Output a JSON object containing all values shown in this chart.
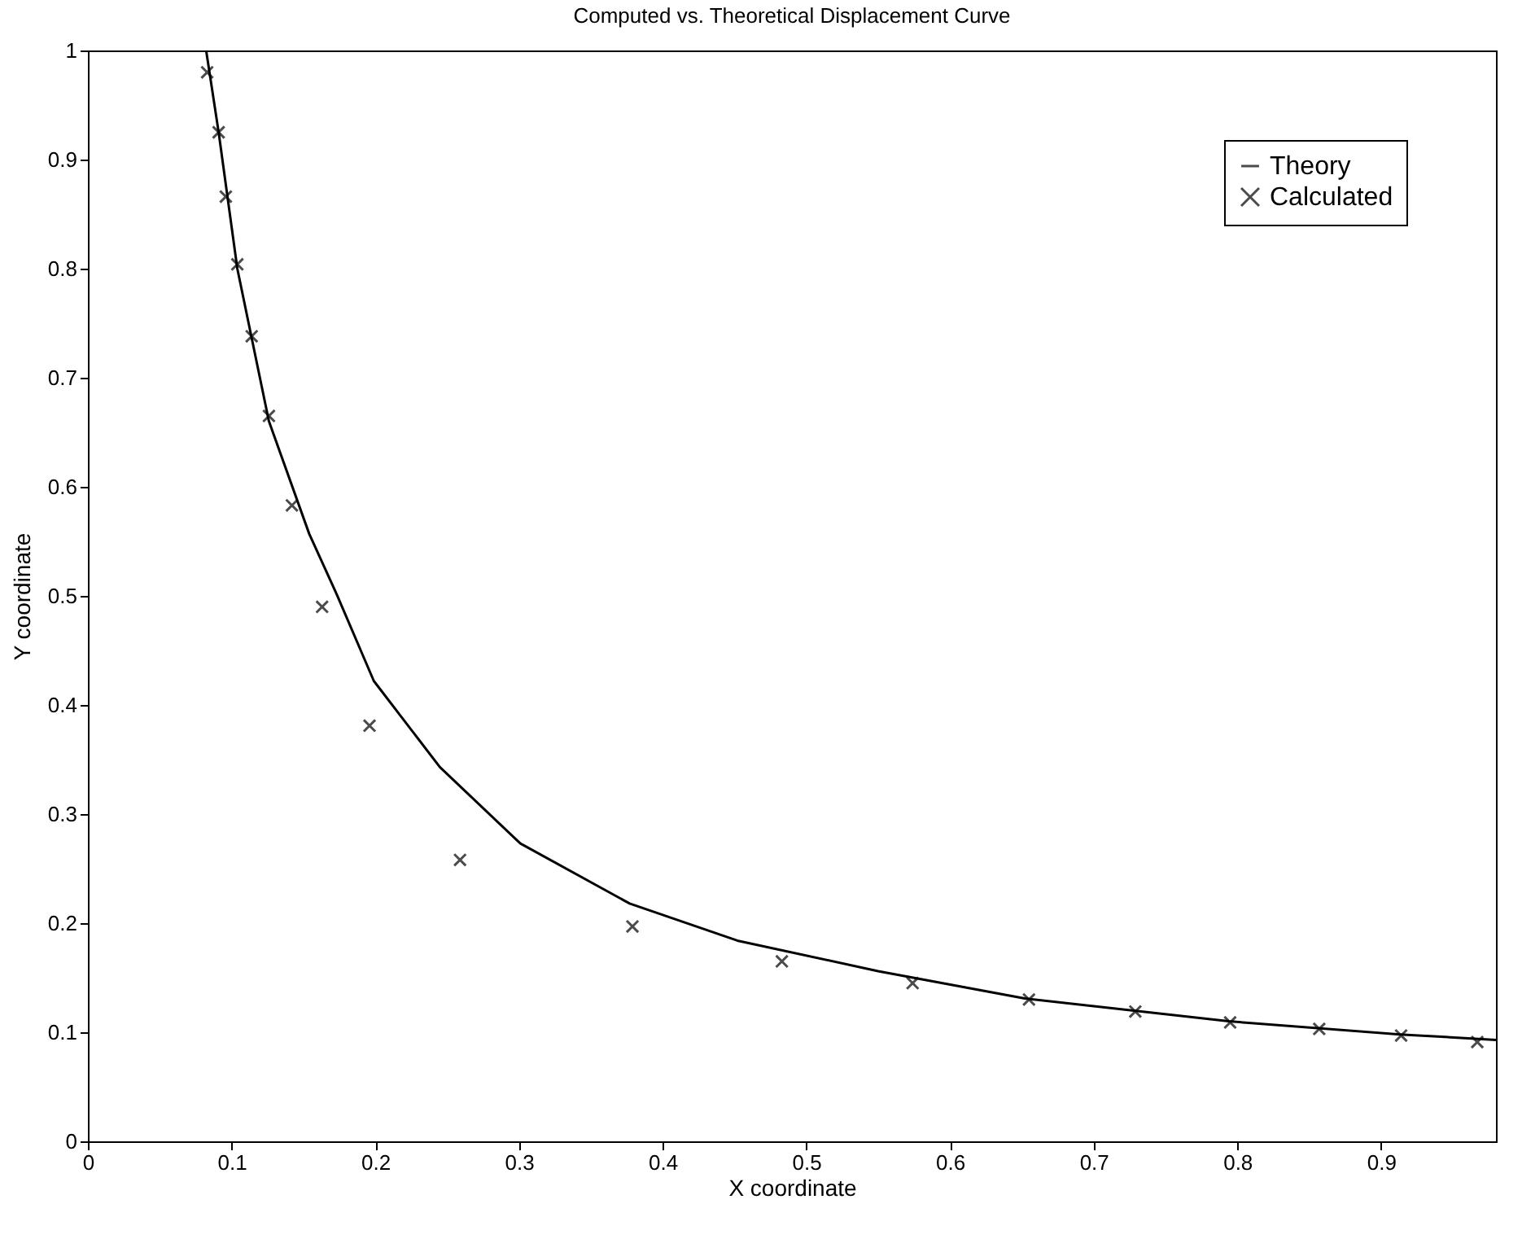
{
  "chart_data": {
    "type": "line",
    "title": "Computed vs. Theoretical Displacement Curve",
    "xlabel": "X coordinate",
    "ylabel": "Y coordinate",
    "xlim": [
      0,
      0.98
    ],
    "ylim": [
      0,
      1
    ],
    "xticks": [
      0,
      0.1,
      0.2,
      0.3,
      0.4,
      0.5,
      0.6,
      0.7,
      0.8,
      0.9
    ],
    "yticks": [
      0,
      0.1,
      0.2,
      0.3,
      0.4,
      0.5,
      0.6,
      0.7,
      0.8,
      0.9,
      1
    ],
    "grid": false,
    "legend": "top right",
    "series": [
      {
        "name": "Theory",
        "color": "#000000",
        "line_style": "solid",
        "x": [
          0.0823,
          0.091,
          0.104,
          0.126,
          0.154,
          0.173,
          0.199,
          0.245,
          0.301,
          0.377,
          0.452,
          0.55,
          0.652,
          0.794,
          0.913,
          0.98
        ],
        "values": [
          1,
          0.925,
          0.8,
          0.66,
          0.557,
          0.502,
          0.422,
          0.343,
          0.273,
          0.218,
          0.184,
          0.156,
          0.131,
          0.11,
          0.098,
          0.093
        ]
      },
      {
        "name": "Calculated",
        "type": "scatter",
        "color": "#000000",
        "marker": "cross",
        "x": [
          0.083,
          0.091,
          0.096,
          0.104,
          0.114,
          0.126,
          0.142,
          0.163,
          0.196,
          0.259,
          0.379,
          0.483,
          0.574,
          0.655,
          0.729,
          0.795,
          0.857,
          0.914,
          0.967
        ],
        "values": [
          0.98,
          0.925,
          0.866,
          0.804,
          0.738,
          0.665,
          0.583,
          0.49,
          0.381,
          0.258,
          0.197,
          0.165,
          0.145,
          0.13,
          0.119,
          0.109,
          0.103,
          0.097,
          0.091
        ]
      }
    ]
  }
}
